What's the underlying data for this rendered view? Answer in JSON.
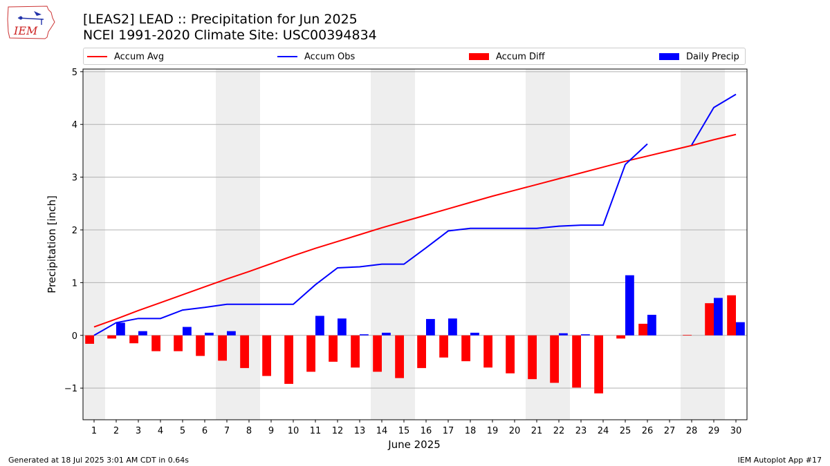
{
  "header": {
    "title_line1": "[LEAS2] LEAD :: Precipitation for Jun 2025",
    "title_line2": "NCEI 1991-2020 Climate Site: USC00394834",
    "logo_text": "IEM"
  },
  "footer": {
    "left": "Generated at 18 Jul 2025 3:01 AM CDT in 0.64s",
    "right": "IEM Autoplot App #17"
  },
  "legend": {
    "placement": "top",
    "items": [
      {
        "label": "Accum Avg",
        "kind": "line",
        "color": "#ff0000"
      },
      {
        "label": "Accum Obs",
        "kind": "line",
        "color": "#0000ff"
      },
      {
        "label": "Accum Diff",
        "kind": "bar",
        "color": "#ff0000"
      },
      {
        "label": "Daily Precip",
        "kind": "bar",
        "color": "#0000ff"
      }
    ]
  },
  "chart_data": {
    "type": "bar",
    "title": "[LEAS2] LEAD :: Precipitation for Jun 2025",
    "subtitle": "NCEI 1991-2020 Climate Site: USC00394834",
    "xlabel": "June 2025",
    "ylabel": "Precipitation [inch]",
    "xlim": [
      0.5,
      30.5
    ],
    "ylim": [
      -1.6,
      5.05
    ],
    "yticks": [
      -1,
      0,
      1,
      2,
      3,
      4,
      5
    ],
    "xticks": [
      1,
      2,
      3,
      4,
      5,
      6,
      7,
      8,
      9,
      10,
      11,
      12,
      13,
      14,
      15,
      16,
      17,
      18,
      19,
      20,
      21,
      22,
      23,
      24,
      25,
      26,
      27,
      28,
      29,
      30
    ],
    "grid": "horizontal",
    "weekend_shading": [
      [
        0.5,
        1.5
      ],
      [
        6.5,
        8.5
      ],
      [
        13.5,
        15.5
      ],
      [
        20.5,
        22.5
      ],
      [
        27.5,
        29.5
      ]
    ],
    "weekend_color": "#eeeeee",
    "x": [
      1,
      2,
      3,
      4,
      5,
      6,
      7,
      8,
      9,
      10,
      11,
      12,
      13,
      14,
      15,
      16,
      17,
      18,
      19,
      20,
      21,
      22,
      23,
      24,
      25,
      26,
      27,
      28,
      29,
      30
    ],
    "series": [
      {
        "name": "Accum Avg",
        "kind": "line",
        "color": "#ff0000",
        "values": [
          0.16,
          0.31,
          0.47,
          0.62,
          0.77,
          0.92,
          1.07,
          1.21,
          1.36,
          1.51,
          1.65,
          1.78,
          1.91,
          2.04,
          2.16,
          2.28,
          2.4,
          2.52,
          2.64,
          2.75,
          2.86,
          2.97,
          3.08,
          3.19,
          3.3,
          3.4,
          3.5,
          3.6,
          3.71,
          3.81
        ]
      },
      {
        "name": "Accum Obs",
        "kind": "line",
        "color": "#0000ff",
        "values": [
          0.0,
          0.24,
          0.32,
          0.32,
          0.48,
          0.53,
          0.59,
          0.59,
          0.59,
          0.59,
          0.96,
          1.28,
          1.3,
          1.35,
          1.35,
          1.66,
          1.98,
          2.03,
          2.03,
          2.03,
          2.03,
          2.07,
          2.09,
          2.09,
          3.24,
          3.63,
          null,
          3.61,
          4.32,
          4.57
        ]
      },
      {
        "name": "Accum Diff",
        "kind": "bar",
        "color": "#ff0000",
        "values": [
          -0.16,
          -0.06,
          -0.15,
          -0.3,
          -0.3,
          -0.39,
          -0.48,
          -0.62,
          -0.77,
          -0.92,
          -0.69,
          -0.5,
          -0.61,
          -0.69,
          -0.81,
          -0.62,
          -0.42,
          -0.49,
          -0.61,
          -0.72,
          -0.83,
          -0.9,
          -0.99,
          -1.1,
          -0.06,
          0.22,
          null,
          0.01,
          0.61,
          0.76
        ]
      },
      {
        "name": "Daily Precip",
        "kind": "bar",
        "color": "#0000ff",
        "values": [
          0.0,
          0.24,
          0.08,
          0.0,
          0.16,
          0.05,
          0.08,
          0.0,
          0.0,
          0.0,
          0.37,
          0.32,
          0.02,
          0.05,
          0.0,
          0.31,
          0.32,
          0.05,
          0.0,
          0.0,
          0.0,
          0.04,
          0.02,
          0.0,
          1.14,
          0.39,
          null,
          0.0,
          0.71,
          0.25
        ]
      }
    ]
  }
}
